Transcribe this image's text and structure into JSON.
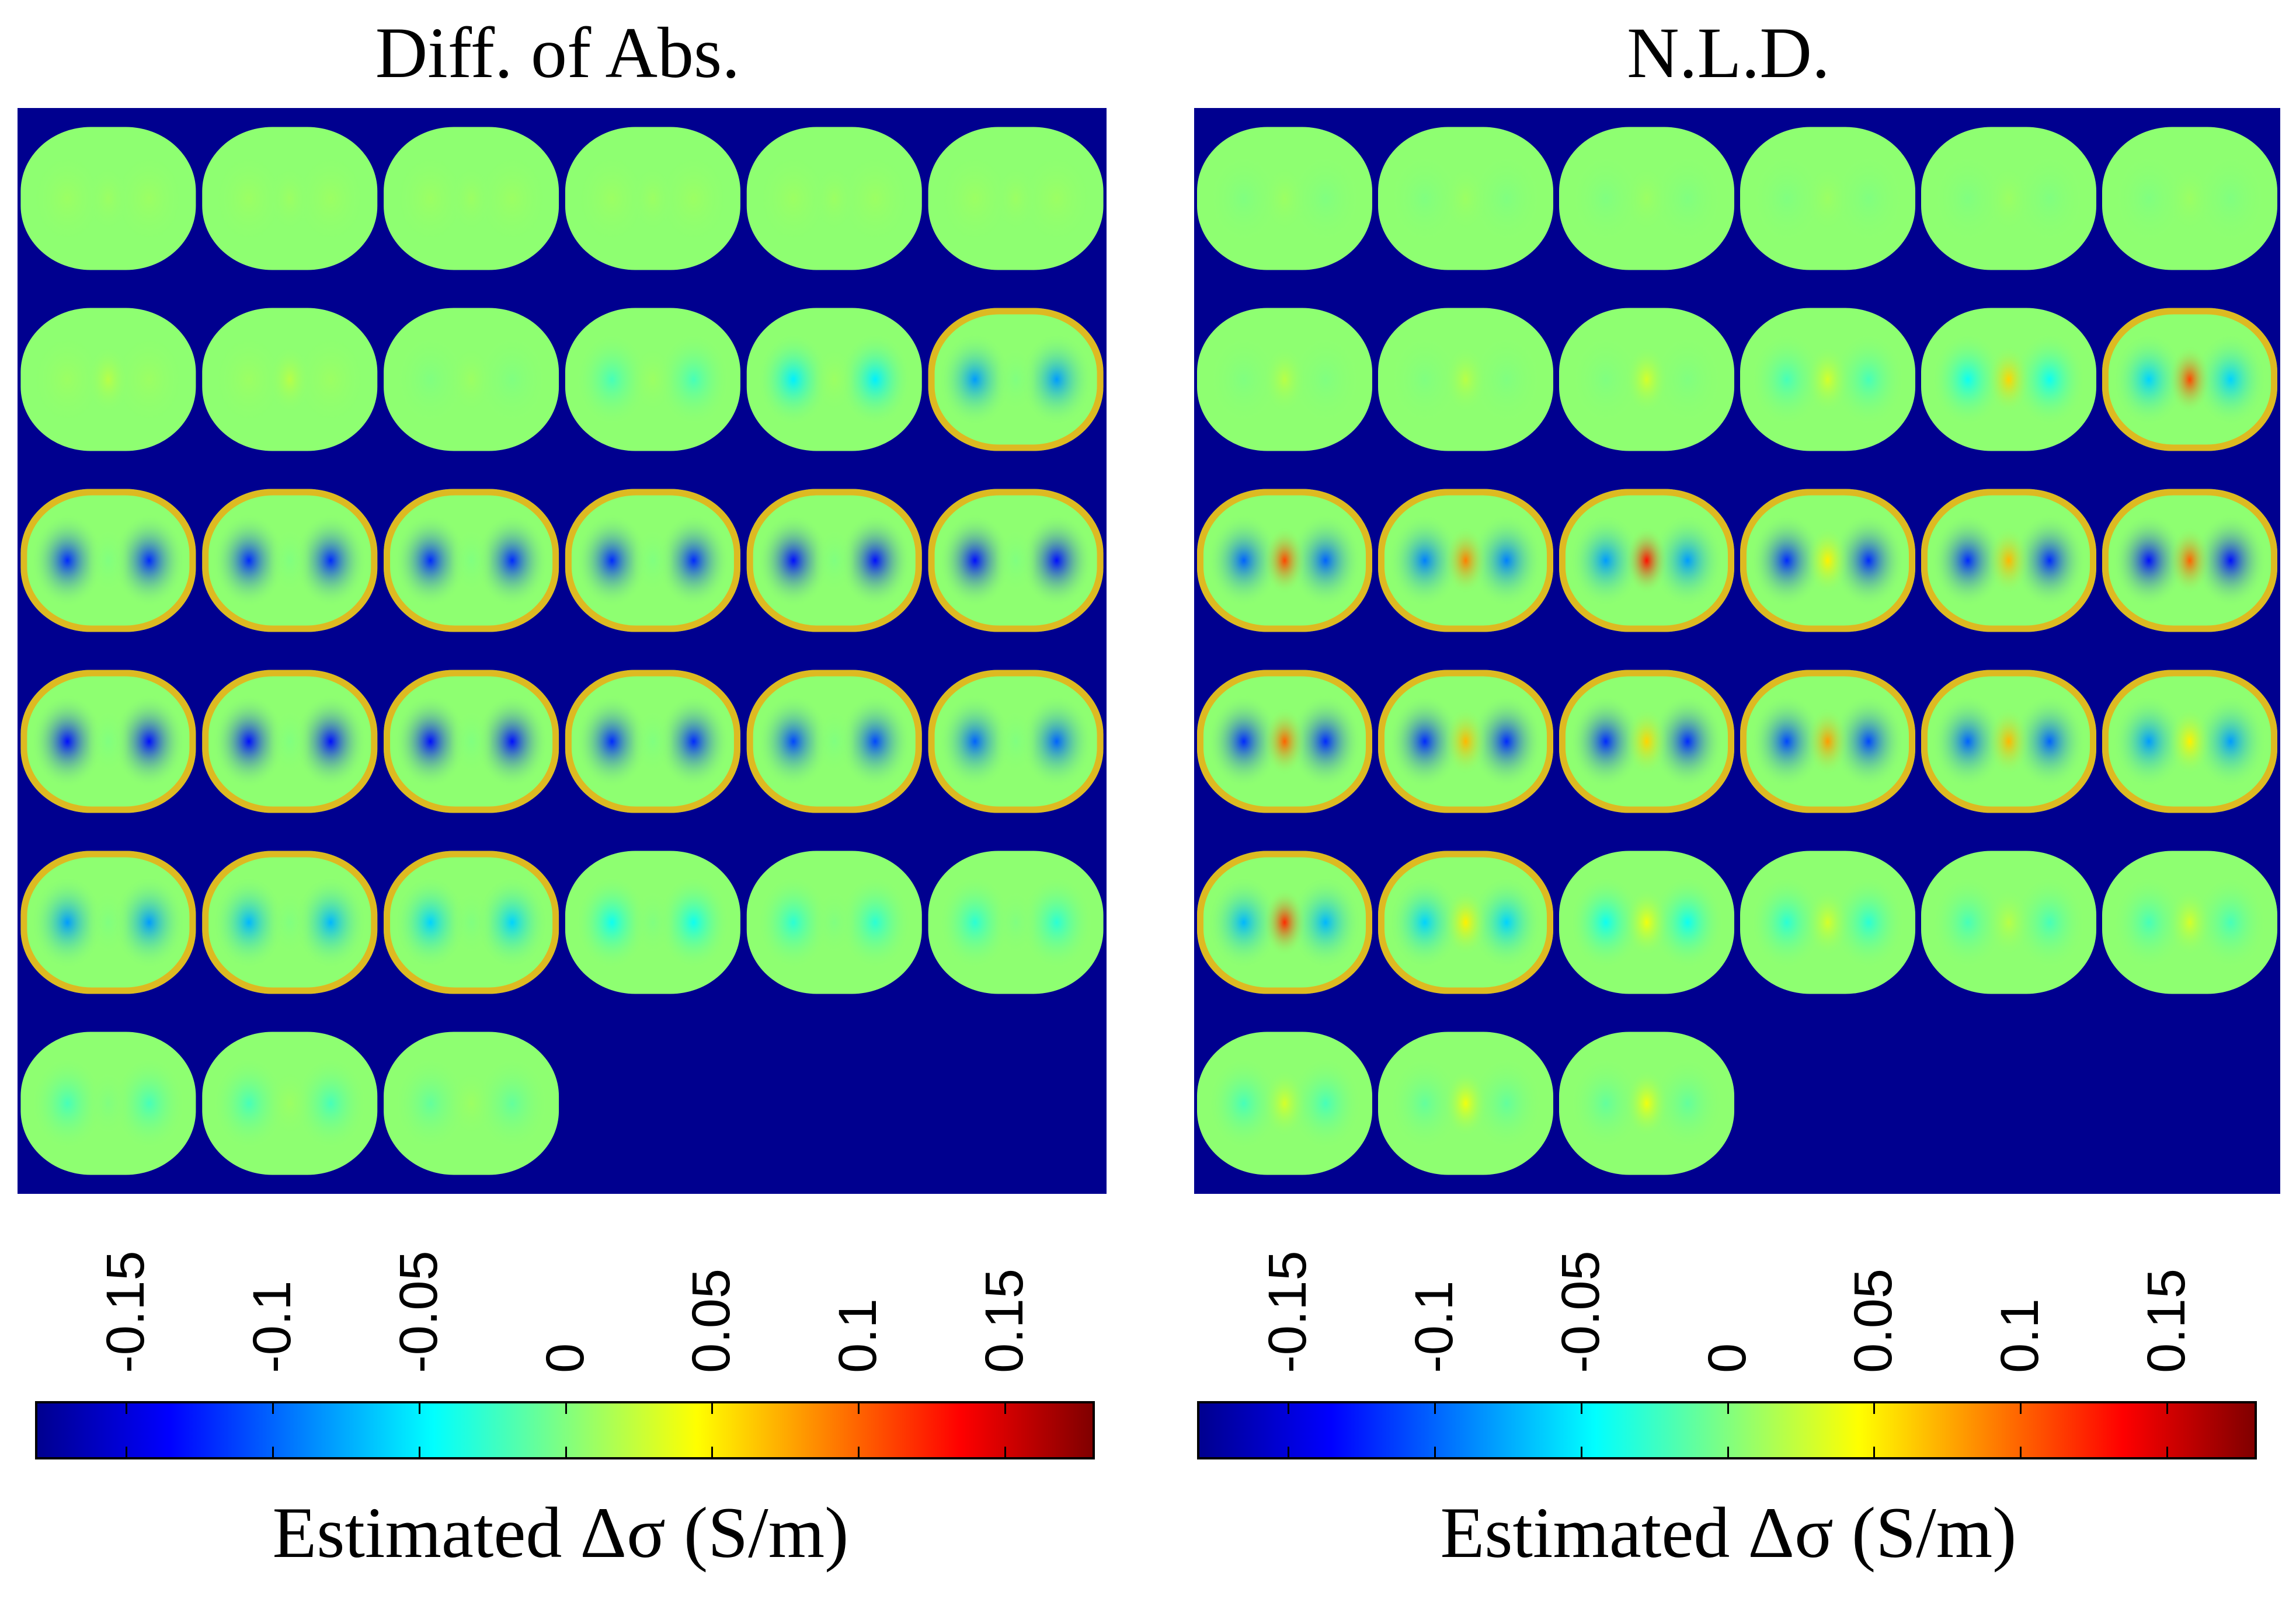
{
  "chart_data": [
    {
      "type": "heatmap",
      "title": "Diff. of Abs.",
      "grid": {
        "rows": 6,
        "cols": 6,
        "slices": 33
      },
      "colormap": "jet",
      "clim": [
        -0.18,
        0.18
      ],
      "background_value": -0.18,
      "slices_mean_intensity": [
        0.01,
        0.01,
        0.01,
        0.01,
        0.01,
        0.01,
        0.01,
        0.01,
        0.0,
        -0.02,
        -0.05,
        -0.08,
        -0.12,
        -0.12,
        -0.12,
        -0.12,
        -0.13,
        -0.13,
        -0.13,
        -0.13,
        -0.13,
        -0.12,
        -0.11,
        -0.1,
        -0.08,
        -0.07,
        -0.06,
        -0.04,
        -0.03,
        -0.03,
        -0.02,
        -0.02,
        -0.01
      ],
      "slices_center_intensity": [
        0.01,
        0.01,
        0.01,
        0.01,
        0.01,
        0.01,
        0.02,
        0.02,
        0.01,
        0.01,
        0.01,
        0.0,
        0.0,
        0.0,
        0.0,
        0.0,
        0.0,
        0.0,
        0.0,
        0.0,
        0.0,
        0.0,
        0.0,
        0.0,
        0.0,
        0.0,
        0.0,
        0.0,
        0.0,
        0.0,
        0.0,
        0.01,
        0.01
      ],
      "colorbar": {
        "ticks": [
          -0.15,
          -0.1,
          -0.05,
          0,
          0.05,
          0.1,
          0.15
        ],
        "tick_labels": [
          "-0.15",
          "-0.1",
          "-0.05",
          "0",
          "0.05",
          "0.1",
          "0.15"
        ],
        "label": "Estimated Δσ (S/m)"
      }
    },
    {
      "type": "heatmap",
      "title": "N.L.D.",
      "grid": {
        "rows": 6,
        "cols": 6,
        "slices": 33
      },
      "colormap": "jet",
      "clim": [
        -0.18,
        0.18
      ],
      "background_value": -0.18,
      "slices_mean_intensity": [
        0.0,
        0.0,
        0.0,
        0.0,
        0.0,
        0.0,
        0.0,
        0.0,
        0.0,
        -0.02,
        -0.04,
        -0.06,
        -0.1,
        -0.09,
        -0.08,
        -0.12,
        -0.12,
        -0.13,
        -0.12,
        -0.12,
        -0.12,
        -0.11,
        -0.1,
        -0.08,
        -0.07,
        -0.06,
        -0.04,
        -0.03,
        -0.02,
        -0.02,
        -0.02,
        -0.01,
        -0.01
      ],
      "slices_center_intensity": [
        0.01,
        0.01,
        0.01,
        0.01,
        0.01,
        0.01,
        0.02,
        0.02,
        0.03,
        0.03,
        0.06,
        0.11,
        0.11,
        0.09,
        0.13,
        0.05,
        0.07,
        0.1,
        0.1,
        0.07,
        0.06,
        0.08,
        0.07,
        0.05,
        0.12,
        0.05,
        0.04,
        0.03,
        0.02,
        0.03,
        0.03,
        0.04,
        0.04
      ],
      "colorbar": {
        "ticks": [
          -0.15,
          -0.1,
          -0.05,
          0,
          0.05,
          0.1,
          0.15
        ],
        "tick_labels": [
          "-0.15",
          "-0.1",
          "-0.05",
          "0",
          "0.05",
          "0.1",
          "0.15"
        ],
        "label": "Estimated Δσ (S/m)"
      }
    }
  ]
}
